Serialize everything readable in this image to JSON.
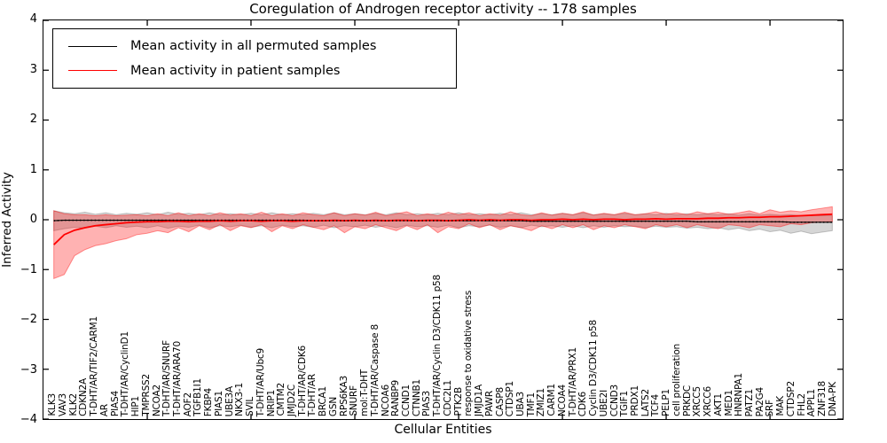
{
  "title": "Coregulation of Androgen receptor activity -- 178 samples",
  "axes": {
    "ylabel": "Inferred Activity",
    "xlabel": "Cellular Entities",
    "yticks": [
      4,
      3,
      2,
      1,
      0,
      -1,
      -2,
      -3,
      -4
    ],
    "ytick_labels": [
      "4",
      "3",
      "2",
      "1",
      "0",
      "−1",
      "−2",
      "−3",
      "−4"
    ]
  },
  "legend": {
    "items": [
      {
        "label": "Mean activity in all permuted samples",
        "color": "#000000"
      },
      {
        "label": "Mean activity in patient samples",
        "color": "#ff0000"
      }
    ]
  },
  "colors": {
    "frame": "#000000",
    "permuted_line": "#000000",
    "patient_line": "#ff0000",
    "permuted_band": "#808080",
    "patient_band": "#ff0000",
    "background": "#ffffff"
  },
  "chart_data": {
    "type": "line",
    "title": "Coregulation of Androgen receptor activity -- 178 samples",
    "xlabel": "Cellular Entities",
    "ylabel": "Inferred Activity",
    "ylim": [
      -4,
      4
    ],
    "xlim": [
      0,
      77
    ],
    "xticks_unlabeled": [
      10,
      20,
      30,
      40,
      50,
      60,
      70
    ],
    "grid": false,
    "legend_position": "upper left",
    "categories": [
      "KLK3",
      "VAV3",
      "KLK2",
      "CDKN2A",
      "T-DHT/AR/TIF2/CARM1",
      "AR",
      "PIAS4",
      "T-DHT/AR/CyclinD1",
      "HIP1",
      "TMPRSS2",
      "NCOA2",
      "T-DHT/AR/SNURF",
      "T-DHT/AR/ARA70",
      "AOF2",
      "TGFB1I1",
      "FKBP4",
      "PIAS1",
      "UBE3A",
      "NKX3-1",
      "SVIL",
      "T-DHT/AR/Ubc9",
      "NRIP1",
      "CMTM2",
      "JMJD2C",
      "T-DHT/AR/CDK6",
      "T-DHT/AR",
      "BRCA1",
      "GSN",
      "RPS6KA3",
      "SNURF",
      "mol:T-DHT",
      "T-DHT/AR/Caspase 8",
      "NCOA6",
      "RANBP9",
      "CCND1",
      "CTNNB1",
      "PIAS3",
      "T-DHT/AR/Cyclin D3/CDK11 p58",
      "CDC2L1",
      "PTK2B",
      "response to oxidative stress",
      "JMJD1A",
      "PAWR",
      "CASP8",
      "CTDSP1",
      "UBA3",
      "TMF1",
      "ZMIZ1",
      "CARM1",
      "NCOA4",
      "T-DHT/AR/PRX1",
      "CDK6",
      "Cyclin D3/CDK11 p58",
      "UBE2I",
      "CCND3",
      "TGIF1",
      "PRDX1",
      "LATS2",
      "TCF4",
      "PELP1",
      "cell proliferation",
      "PRKDC",
      "XRCC5",
      "XRCC6",
      "AKT1",
      "MED1",
      "HNRNPA1",
      "PATZ1",
      "PA2G4",
      "SRF",
      "MAK",
      "CTDSP2",
      "FHL2",
      "APPL1",
      "ZNF318",
      "DNA-PK"
    ],
    "series": [
      {
        "name": "Mean activity in all permuted samples",
        "color": "#000000",
        "band_fill": "rgba(128,128,128,0.32)",
        "band_stroke": "rgba(128,128,128,0.45)",
        "values": [
          -0.02,
          -0.01,
          -0.01,
          -0.01,
          -0.01,
          -0.01,
          -0.01,
          -0.01,
          -0.01,
          -0.01,
          -0.01,
          -0.01,
          -0.01,
          -0.01,
          -0.01,
          -0.01,
          -0.01,
          -0.01,
          -0.01,
          -0.01,
          -0.01,
          -0.01,
          -0.01,
          -0.01,
          -0.01,
          -0.02,
          -0.02,
          -0.02,
          -0.02,
          -0.02,
          -0.02,
          -0.02,
          -0.02,
          -0.02,
          -0.02,
          -0.02,
          -0.02,
          -0.02,
          -0.02,
          -0.02,
          -0.02,
          -0.02,
          -0.02,
          -0.02,
          -0.02,
          -0.02,
          -0.03,
          -0.03,
          -0.03,
          -0.03,
          -0.03,
          -0.03,
          -0.03,
          -0.03,
          -0.03,
          -0.03,
          -0.03,
          -0.03,
          -0.03,
          -0.03,
          -0.03,
          -0.03,
          -0.04,
          -0.04,
          -0.04,
          -0.04,
          -0.04,
          -0.04,
          -0.04,
          -0.04,
          -0.04,
          -0.05,
          -0.05,
          -0.05,
          -0.05,
          -0.05
        ],
        "band_lo": [
          -0.22,
          -0.18,
          -0.15,
          -0.17,
          -0.13,
          -0.16,
          -0.12,
          -0.15,
          -0.13,
          -0.16,
          -0.12,
          -0.17,
          -0.13,
          -0.15,
          -0.11,
          -0.16,
          -0.12,
          -0.14,
          -0.11,
          -0.15,
          -0.12,
          -0.16,
          -0.11,
          -0.14,
          -0.12,
          -0.15,
          -0.11,
          -0.16,
          -0.12,
          -0.14,
          -0.11,
          -0.15,
          -0.12,
          -0.16,
          -0.11,
          -0.14,
          -0.12,
          -0.15,
          -0.11,
          -0.16,
          -0.12,
          -0.14,
          -0.11,
          -0.15,
          -0.12,
          -0.16,
          -0.11,
          -0.14,
          -0.12,
          -0.15,
          -0.12,
          -0.16,
          -0.12,
          -0.15,
          -0.12,
          -0.14,
          -0.13,
          -0.16,
          -0.13,
          -0.15,
          -0.14,
          -0.17,
          -0.15,
          -0.18,
          -0.16,
          -0.2,
          -0.17,
          -0.22,
          -0.19,
          -0.24,
          -0.21,
          -0.27,
          -0.23,
          -0.28,
          -0.25,
          -0.22
        ],
        "band_hi": [
          0.18,
          0.14,
          0.12,
          0.15,
          0.11,
          0.14,
          0.1,
          0.13,
          0.11,
          0.14,
          0.1,
          0.15,
          0.11,
          0.13,
          0.1,
          0.14,
          0.1,
          0.12,
          0.1,
          0.13,
          0.1,
          0.14,
          0.1,
          0.12,
          0.1,
          0.13,
          0.1,
          0.14,
          0.1,
          0.12,
          0.1,
          0.13,
          0.1,
          0.14,
          0.1,
          0.12,
          0.1,
          0.13,
          0.1,
          0.14,
          0.1,
          0.12,
          0.1,
          0.13,
          0.1,
          0.14,
          0.1,
          0.12,
          0.1,
          0.13,
          0.1,
          0.14,
          0.1,
          0.12,
          0.1,
          0.13,
          0.1,
          0.12,
          0.1,
          0.13,
          0.1,
          0.12,
          0.1,
          0.12,
          0.1,
          0.12,
          0.09,
          0.12,
          0.09,
          0.11,
          0.09,
          0.1,
          0.08,
          0.09,
          0.08,
          0.08
        ]
      },
      {
        "name": "Mean activity in patient samples",
        "color": "#ff0000",
        "band_fill": "rgba(255,0,0,0.30)",
        "band_stroke": "rgba(255,0,0,0.40)",
        "values": [
          -0.5,
          -0.3,
          -0.21,
          -0.16,
          -0.12,
          -0.1,
          -0.08,
          -0.06,
          -0.05,
          -0.04,
          -0.04,
          -0.03,
          -0.03,
          -0.04,
          -0.03,
          -0.03,
          -0.02,
          -0.03,
          -0.02,
          -0.02,
          -0.03,
          -0.02,
          -0.02,
          -0.03,
          -0.02,
          -0.02,
          -0.02,
          -0.01,
          -0.02,
          -0.01,
          -0.02,
          -0.01,
          -0.02,
          -0.01,
          -0.01,
          -0.02,
          -0.01,
          -0.01,
          -0.02,
          -0.01,
          0.0,
          -0.01,
          0.0,
          -0.01,
          0.0,
          0.0,
          -0.01,
          0.0,
          0.0,
          0.01,
          0.0,
          0.01,
          0.0,
          0.01,
          0.01,
          0.0,
          0.01,
          0.01,
          0.02,
          0.01,
          0.02,
          0.02,
          0.02,
          0.03,
          0.03,
          0.04,
          0.04,
          0.05,
          0.05,
          0.06,
          0.06,
          0.07,
          0.08,
          0.09,
          0.1,
          0.11
        ],
        "band_lo": [
          -1.18,
          -1.1,
          -0.72,
          -0.6,
          -0.52,
          -0.48,
          -0.42,
          -0.38,
          -0.3,
          -0.27,
          -0.22,
          -0.26,
          -0.16,
          -0.24,
          -0.12,
          -0.2,
          -0.1,
          -0.22,
          -0.12,
          -0.16,
          -0.1,
          -0.24,
          -0.12,
          -0.18,
          -0.1,
          -0.15,
          -0.2,
          -0.12,
          -0.26,
          -0.14,
          -0.18,
          -0.1,
          -0.16,
          -0.22,
          -0.12,
          -0.2,
          -0.1,
          -0.26,
          -0.14,
          -0.18,
          -0.08,
          -0.16,
          -0.1,
          -0.2,
          -0.12,
          -0.16,
          -0.22,
          -0.12,
          -0.18,
          -0.1,
          -0.16,
          -0.1,
          -0.2,
          -0.12,
          -0.16,
          -0.1,
          -0.14,
          -0.18,
          -0.1,
          -0.14,
          -0.1,
          -0.16,
          -0.1,
          -0.14,
          -0.18,
          -0.1,
          -0.12,
          -0.16,
          -0.1,
          -0.12,
          -0.14,
          -0.08,
          -0.1,
          -0.06,
          -0.05,
          -0.04
        ],
        "band_hi": [
          0.18,
          0.12,
          0.1,
          0.1,
          0.08,
          0.1,
          0.08,
          0.09,
          0.1,
          0.08,
          0.12,
          0.08,
          0.14,
          0.08,
          0.12,
          0.08,
          0.14,
          0.09,
          0.12,
          0.08,
          0.15,
          0.08,
          0.12,
          0.08,
          0.14,
          0.1,
          0.08,
          0.14,
          0.08,
          0.12,
          0.09,
          0.15,
          0.08,
          0.12,
          0.16,
          0.08,
          0.12,
          0.08,
          0.15,
          0.1,
          0.14,
          0.08,
          0.12,
          0.09,
          0.16,
          0.1,
          0.08,
          0.14,
          0.09,
          0.13,
          0.1,
          0.16,
          0.09,
          0.13,
          0.1,
          0.15,
          0.1,
          0.12,
          0.16,
          0.11,
          0.14,
          0.1,
          0.16,
          0.12,
          0.15,
          0.11,
          0.14,
          0.18,
          0.12,
          0.2,
          0.15,
          0.18,
          0.16,
          0.2,
          0.23,
          0.26
        ]
      }
    ]
  }
}
